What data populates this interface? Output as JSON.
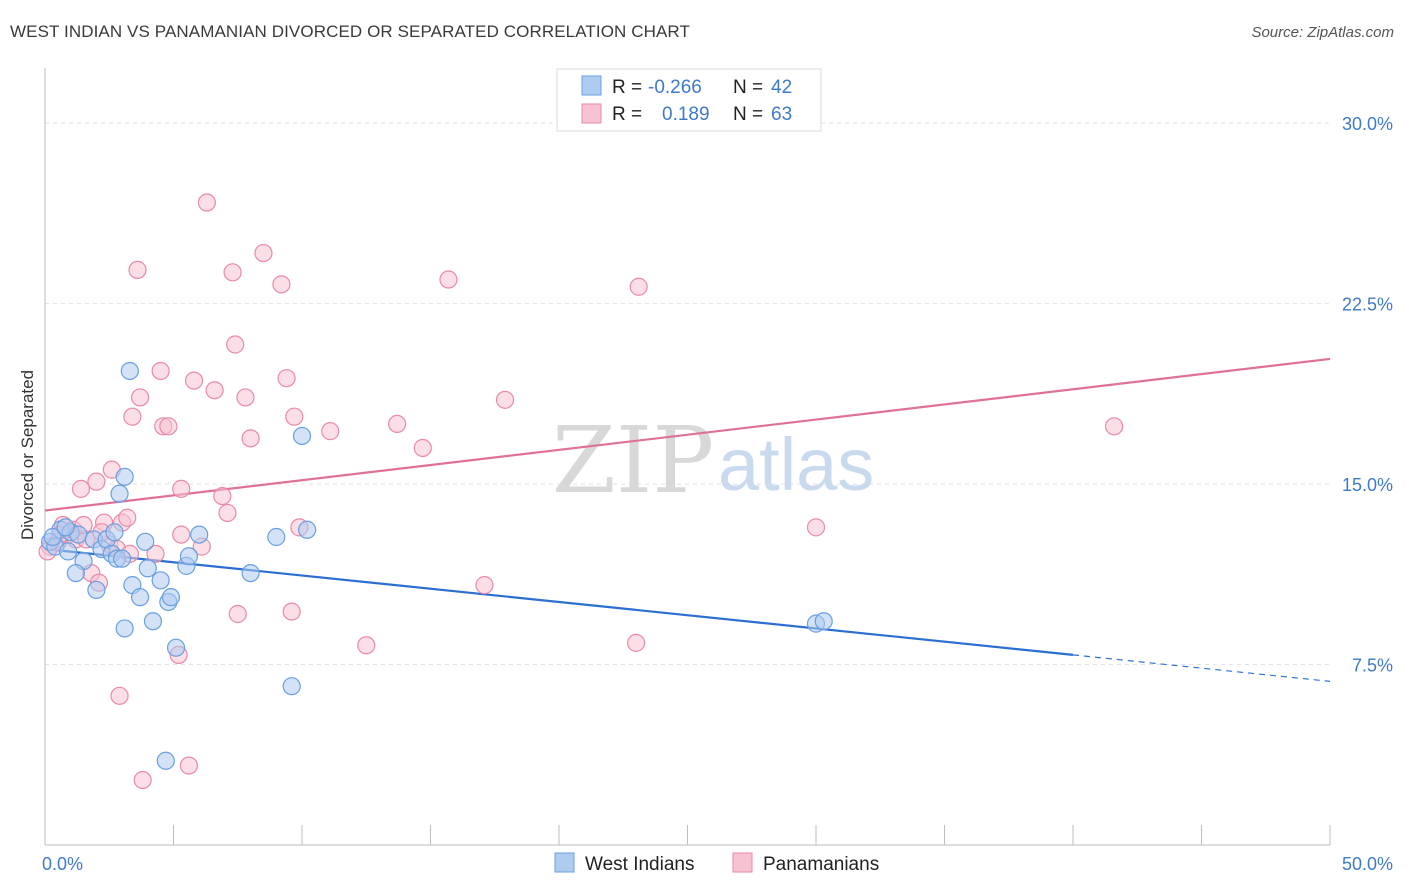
{
  "title": "WEST INDIAN VS PANAMANIAN DIVORCED OR SEPARATED CORRELATION CHART",
  "source": "Source: ZipAtlas.com",
  "watermark": {
    "zip": "ZIP",
    "atlas": "atlas"
  },
  "colors": {
    "blue_fill": "#aecbf0",
    "blue_stroke": "#6a9fe0",
    "blue_line": "#2b6fd1",
    "pink_fill": "#f7c2d2",
    "pink_stroke": "#e88aa8",
    "pink_line": "#e0709a",
    "grid": "#e2e2e2",
    "axis_text": "#3f7ac9"
  },
  "legend": {
    "rows": [
      {
        "r_label": "R =",
        "r_value": "-0.266",
        "n_label": "N =",
        "n_value": "42",
        "series": "blue"
      },
      {
        "r_label": "R =",
        "r_value": "0.189",
        "n_label": "N =",
        "n_value": "63",
        "series": "pink"
      }
    ]
  },
  "chart_data": {
    "type": "scatter",
    "title": "WEST INDIAN VS PANAMANIAN DIVORCED OR SEPARATED CORRELATION CHART",
    "xlabel": "",
    "ylabel": "Divorced or Separated",
    "xlim": [
      0,
      50
    ],
    "ylim": [
      0,
      32
    ],
    "x_tick_labels": [
      "0.0%",
      "50.0%"
    ],
    "y_ticks": [
      7.5,
      15.0,
      22.5,
      30.0
    ],
    "y_tick_labels": [
      "7.5%",
      "15.0%",
      "22.5%",
      "30.0%"
    ],
    "grid": true,
    "legend_position": "bottom",
    "series": [
      {
        "name": "West Indians",
        "color": "blue",
        "trend": {
          "x0": 0,
          "y0": 12.3,
          "x1": 40,
          "y1": 7.9,
          "dash_to_x": 50,
          "dash_to_y": 6.8
        },
        "points": [
          [
            0.2,
            12.6
          ],
          [
            0.4,
            12.4
          ],
          [
            0.6,
            13.1
          ],
          [
            0.3,
            12.8
          ],
          [
            0.9,
            12.2
          ],
          [
            1.0,
            13.0
          ],
          [
            1.3,
            12.9
          ],
          [
            1.5,
            11.8
          ],
          [
            1.9,
            12.7
          ],
          [
            2.0,
            10.6
          ],
          [
            2.2,
            12.3
          ],
          [
            2.4,
            12.7
          ],
          [
            2.6,
            12.1
          ],
          [
            2.7,
            13.0
          ],
          [
            2.8,
            11.9
          ],
          [
            3.0,
            11.9
          ],
          [
            3.1,
            15.3
          ],
          [
            2.9,
            14.6
          ],
          [
            3.1,
            9.0
          ],
          [
            3.3,
            19.7
          ],
          [
            3.4,
            10.8
          ],
          [
            3.7,
            10.3
          ],
          [
            3.9,
            12.6
          ],
          [
            4.0,
            11.5
          ],
          [
            4.2,
            9.3
          ],
          [
            4.5,
            11.0
          ],
          [
            4.8,
            10.1
          ],
          [
            4.9,
            10.3
          ],
          [
            5.1,
            8.2
          ],
          [
            5.5,
            11.6
          ],
          [
            5.6,
            12.0
          ],
          [
            6.0,
            12.9
          ],
          [
            4.7,
            3.5
          ],
          [
            8.0,
            11.3
          ],
          [
            9.0,
            12.8
          ],
          [
            9.6,
            6.6
          ],
          [
            10.0,
            17.0
          ],
          [
            10.2,
            13.1
          ],
          [
            30.0,
            9.2
          ],
          [
            30.3,
            9.3
          ],
          [
            1.2,
            11.3
          ],
          [
            0.8,
            13.2
          ]
        ]
      },
      {
        "name": "Panamanians",
        "color": "pink",
        "trend": {
          "x0": 0,
          "y0": 13.9,
          "x1": 50,
          "y1": 20.2
        },
        "points": [
          [
            0.2,
            12.4
          ],
          [
            0.5,
            12.6
          ],
          [
            0.7,
            13.3
          ],
          [
            0.9,
            12.9
          ],
          [
            1.1,
            13.1
          ],
          [
            1.2,
            12.7
          ],
          [
            1.4,
            14.8
          ],
          [
            1.6,
            12.7
          ],
          [
            1.8,
            11.3
          ],
          [
            2.0,
            15.1
          ],
          [
            2.1,
            10.9
          ],
          [
            2.3,
            13.4
          ],
          [
            2.5,
            12.5
          ],
          [
            2.6,
            15.6
          ],
          [
            2.8,
            12.3
          ],
          [
            2.9,
            6.2
          ],
          [
            3.0,
            13.4
          ],
          [
            3.2,
            13.6
          ],
          [
            3.3,
            12.1
          ],
          [
            3.4,
            17.8
          ],
          [
            3.6,
            23.9
          ],
          [
            3.7,
            18.6
          ],
          [
            3.8,
            2.7
          ],
          [
            4.3,
            12.1
          ],
          [
            4.5,
            19.7
          ],
          [
            4.6,
            17.4
          ],
          [
            4.8,
            17.4
          ],
          [
            5.2,
            7.9
          ],
          [
            5.3,
            14.8
          ],
          [
            5.3,
            12.9
          ],
          [
            5.6,
            3.3
          ],
          [
            5.8,
            19.3
          ],
          [
            6.1,
            12.4
          ],
          [
            6.3,
            26.7
          ],
          [
            6.6,
            18.9
          ],
          [
            6.9,
            14.5
          ],
          [
            7.1,
            13.8
          ],
          [
            7.3,
            23.8
          ],
          [
            7.4,
            20.8
          ],
          [
            7.5,
            9.6
          ],
          [
            7.8,
            18.6
          ],
          [
            8.0,
            16.9
          ],
          [
            8.5,
            24.6
          ],
          [
            9.2,
            23.3
          ],
          [
            9.4,
            19.4
          ],
          [
            9.6,
            9.7
          ],
          [
            9.7,
            17.8
          ],
          [
            9.9,
            13.2
          ],
          [
            11.1,
            17.2
          ],
          [
            12.5,
            8.3
          ],
          [
            13.7,
            17.5
          ],
          [
            14.7,
            16.5
          ],
          [
            15.7,
            23.5
          ],
          [
            17.1,
            10.8
          ],
          [
            17.9,
            18.5
          ],
          [
            23.0,
            8.4
          ],
          [
            23.1,
            23.2
          ],
          [
            30.0,
            13.2
          ],
          [
            41.6,
            17.4
          ],
          [
            0.6,
            12.9
          ],
          [
            1.5,
            13.3
          ],
          [
            2.2,
            13.0
          ],
          [
            0.1,
            12.2
          ]
        ]
      }
    ]
  }
}
